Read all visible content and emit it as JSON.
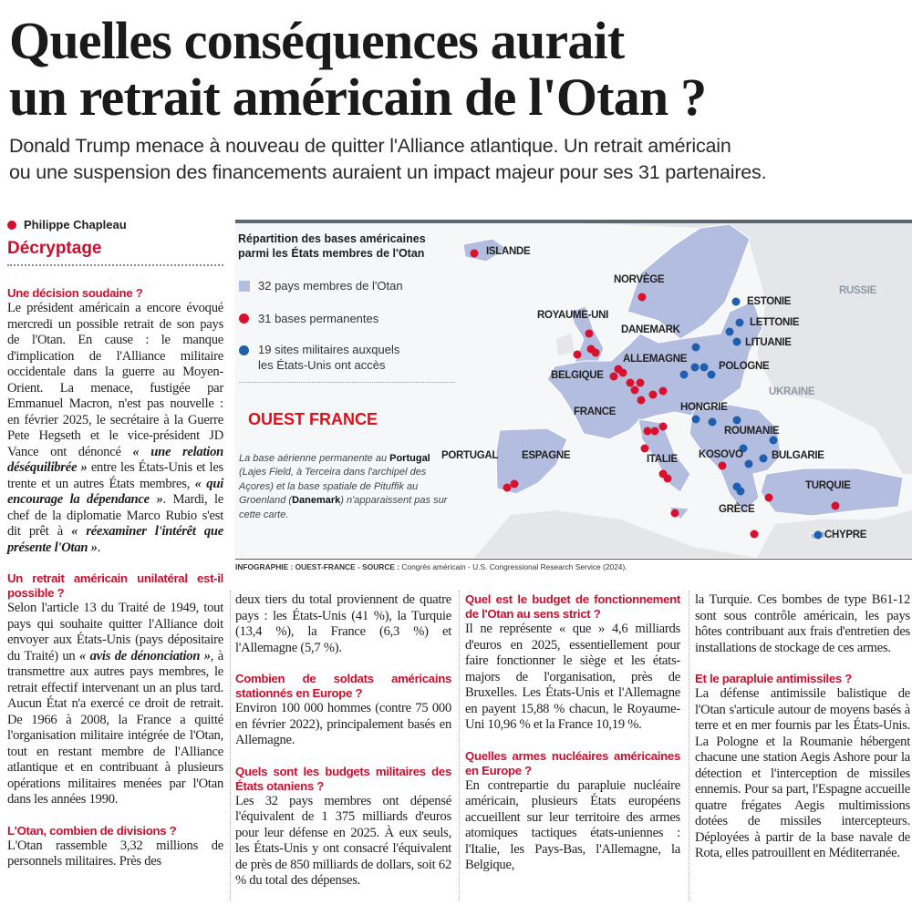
{
  "headline": {
    "line1": "Quelles conséquences aurait",
    "line2": "un retrait américain de l'Otan ?"
  },
  "standfirst": {
    "line1": "Donald Trump menace à nouveau de quitter l'Alliance atlantique. Un retrait américain",
    "line2": "ou une suspension des financements auraient un impact majeur pour ses 31 partenaires."
  },
  "byline": {
    "author": "Philippe Chapleau",
    "rubric": "Décryptage"
  },
  "map": {
    "title_line1": "Répartition des bases américaines",
    "title_line2": "parmi les États membres de l'Otan",
    "legend": {
      "members": "32 pays membres de l'Otan",
      "bases": "31 bases permanentes",
      "sites_line1": "19 sites militaires auxquels",
      "sites_line2": "les États-Unis ont accès"
    },
    "colors": {
      "member_fill": "#b3bde0",
      "base_dot": "#d9102e",
      "site_dot": "#1f5fae",
      "other_land": "#e4e6ea"
    },
    "labels": {
      "islande": "ISLANDE",
      "norvege": "NORVÈGE",
      "royaume_uni": "ROYAUME-UNI",
      "danemark": "DANEMARK",
      "allemagne": "ALLEMAGNE",
      "belgique": "BELGIQUE",
      "france": "FRANCE",
      "portugal": "PORTUGAL",
      "espagne": "ESPAGNE",
      "italie": "ITALIE",
      "kosovo": "KOSOVO",
      "grece": "GRÈCE",
      "hongrie": "HONGRIE",
      "roumanie": "ROUMANIE",
      "bulgarie": "BULGARIE",
      "turquie": "TURQUIE",
      "chypre": "CHYPRE",
      "estonie": "ESTONIE",
      "lettonie": "LETTONIE",
      "lituanie": "LITUANIE",
      "pologne": "POLOGNE",
      "ukraine": "UKRAINE",
      "russie": "RUSSIE"
    },
    "note": {
      "p1": "La base aérienne permanente au ",
      "portugal": "Portugal",
      "p2": " (Lajes Field, à Terceira dans l'archipel des Açores) et la base spatiale de Pituffik au Groenland (",
      "danemark": "Danemark",
      "p3": ") n'apparaissent pas sur cette carte."
    },
    "watermark": "OUEST FRANCE",
    "credit_label": "INFOGRAPHIE : OUEST-FRANCE - SOURCE :",
    "credit_source": " Congrès américain - U.S. Congressional Research Service (2024)."
  },
  "article": {
    "s1": {
      "question": "Une décision soudaine ?",
      "t0": "Le président américain a encore évoqué mercredi un possible retrait de son pays de l'Otan. En cause : le manque d'implication de l'Alliance militaire occidentale dans la guerre au Moyen-Orient. La menace, fustigée par Emmanuel Macron, n'est pas nouvelle : en février 2025, le secrétaire à la Guerre Pete Hegseth et le vice-président JD Vance ont dénoncé ",
      "e1": "« une relation déséquilibrée »",
      "t2": " entre les États-Unis et les trente et un autres États membres, ",
      "e3": "« qui encourage la dépendance »",
      "t4": ". Mardi, le chef de la diplomatie Marco Rubio s'est dit prêt à ",
      "e5": "« réexaminer l'intérêt que présente l'Otan »",
      "t6": "."
    },
    "s2": {
      "question": "Un retrait américain unilatéral est-il possible ?",
      "t0": "Selon l'article 13 du Traité de 1949, tout pays qui souhaite quitter l'Alliance doit envoyer aux États-Unis (pays dépositaire du Traité) un ",
      "e1": "« avis de dénonciation »",
      "t2": ", à transmettre aux autres pays membres, le retrait effectif intervenant un an plus tard. Aucun État n'a exercé ce droit de retrait. De 1966 à 2008, la France a quitté l'organisation militaire intégrée de l'Otan, tout en restant membre de l'Alliance atlantique et en contribuant à plusieurs opérations militaires menées par l'Otan dans les années 1990."
    },
    "s3": {
      "question": "L'Otan, combien de divisions ?",
      "part1": "L'Otan rassemble 3,32 millions de personnels militaires. Près des",
      "part2": "deux tiers du total proviennent de quatre pays : les États-Unis (41 %), la Turquie (13,4 %), la France (6,3 %) et l'Allemagne (5,7 %)."
    },
    "s4": {
      "question": "Combien de soldats américains stationnés en Europe ?",
      "text": "Environ 100 000 hommes (contre 75 000 en février 2022), principalement basés en Allemagne."
    },
    "s5": {
      "question": "Quels sont les budgets militaires des États otaniens ?",
      "text": "Les 32 pays membres ont dépensé l'équivalent de 1 375 milliards d'euros pour leur défense en 2025. À eux seuls, les États-Unis y ont consacré l'équivalent de près de 850 milliards de dollars, soit 62 % du total des dépenses."
    },
    "s6": {
      "question": "Quel est le budget de fonctionnement de l'Otan au sens strict ?",
      "text": "Il ne représente « que » 4,6 milliards d'euros en 2025, essentiellement pour faire fonctionner le siège et les états-majors de l'organisation, près de Bruxelles. Les États-Unis et l'Allemagne en payent 15,88 % chacun, le Royaume-Uni 10,96 % et la France 10,19 %."
    },
    "s7": {
      "question": "Quelles armes nucléaires américaines en Europe ?",
      "part1": "En contrepartie du parapluie nucléaire américain, plusieurs États européens accueillent sur leur territoire des armes atomiques tactiques états-uniennes : l'Italie, les Pays-Bas, l'Allemagne, la Belgique,",
      "part2": "la Turquie. Ces bombes de type B61-12 sont sous contrôle américain, les pays hôtes contribuant aux frais d'entretien des installations de stockage de ces armes."
    },
    "s8": {
      "question": "Et le parapluie antimissiles ?",
      "text": "La défense antimissile balistique de l'Otan s'articule autour de moyens basés à terre et en mer fournis par les États-Unis. La Pologne et la Roumanie hébergent chacune une station Aegis Ashore pour la détection et l'interception de missiles ennemis. Pour sa part, l'Espagne accueille quatre frégates Aegis multimissions dotées de missiles intercepteurs. Déployées à partir de la base navale de Rota, elles patrouillent en Méditerranée."
    }
  }
}
